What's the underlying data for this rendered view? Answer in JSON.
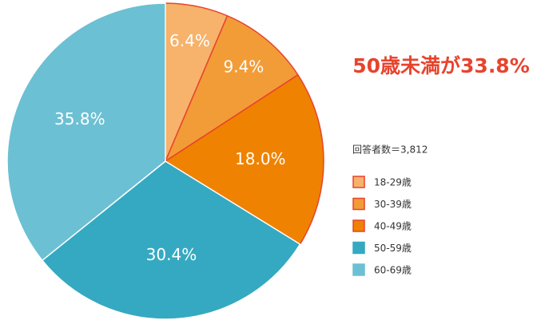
{
  "chart_data": {
    "type": "pie",
    "annotation": "50歳未満が33.8%",
    "note": "回答者数＝3,812",
    "categories": [
      "18-29歳",
      "30-39歳",
      "40-49歳",
      "50-59歳",
      "60-69歳"
    ],
    "values": [
      6.4,
      9.4,
      18.0,
      30.4,
      35.8
    ],
    "value_labels": [
      "6.4%",
      "9.4%",
      "18.0%",
      "30.4%",
      "35.8%"
    ],
    "colors": [
      "#f7b26b",
      "#f29c38",
      "#ef8200",
      "#35a9c1",
      "#6cc0d3"
    ],
    "edgecolors": [
      "#e8432d",
      "#e8432d",
      "#e8432d",
      "#ffffff",
      "#ffffff"
    ],
    "legend": "right"
  }
}
